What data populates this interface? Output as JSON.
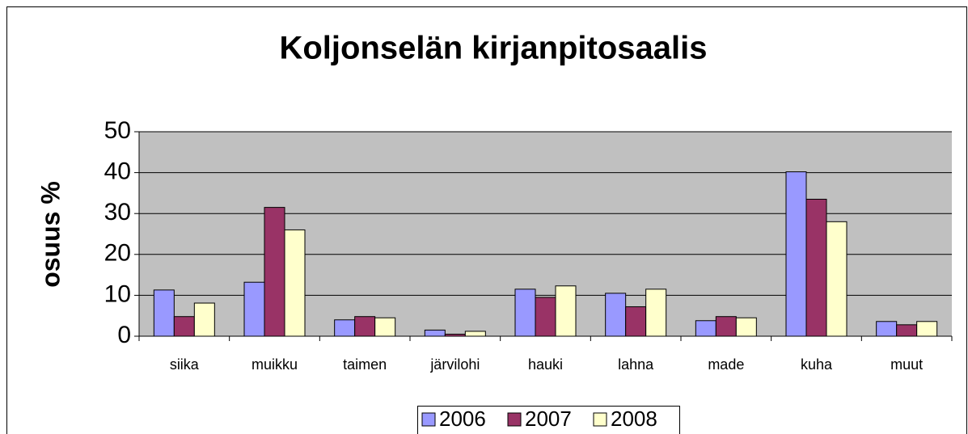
{
  "chart_data": {
    "type": "bar",
    "title": "Koljonselän kirjanpitosaalis",
    "y_label": "osuus %",
    "categories": [
      "siika",
      "muikku",
      "taimen",
      "järvilohi",
      "hauki",
      "lahna",
      "made",
      "kuha",
      "muut"
    ],
    "series": [
      {
        "name": "2006",
        "color": "#9999ff",
        "values": [
          11.3,
          13.2,
          4,
          1.5,
          11.5,
          10.5,
          3.8,
          40.2,
          3.6
        ]
      },
      {
        "name": "2007",
        "color": "#993366",
        "values": [
          4.8,
          31.5,
          4.8,
          0.5,
          9.5,
          7.2,
          4.8,
          33.5,
          2.8
        ]
      },
      {
        "name": "2008",
        "color": "#ffffcc",
        "values": [
          8.1,
          26,
          4.5,
          1.2,
          12.3,
          11.5,
          4.5,
          28,
          3.6
        ]
      }
    ],
    "ylim": [
      0,
      50
    ],
    "yticks": [
      0,
      10,
      20,
      30,
      40,
      50
    ],
    "grid": true,
    "plot_background": "#c0c0c0",
    "legend": "bottom"
  }
}
